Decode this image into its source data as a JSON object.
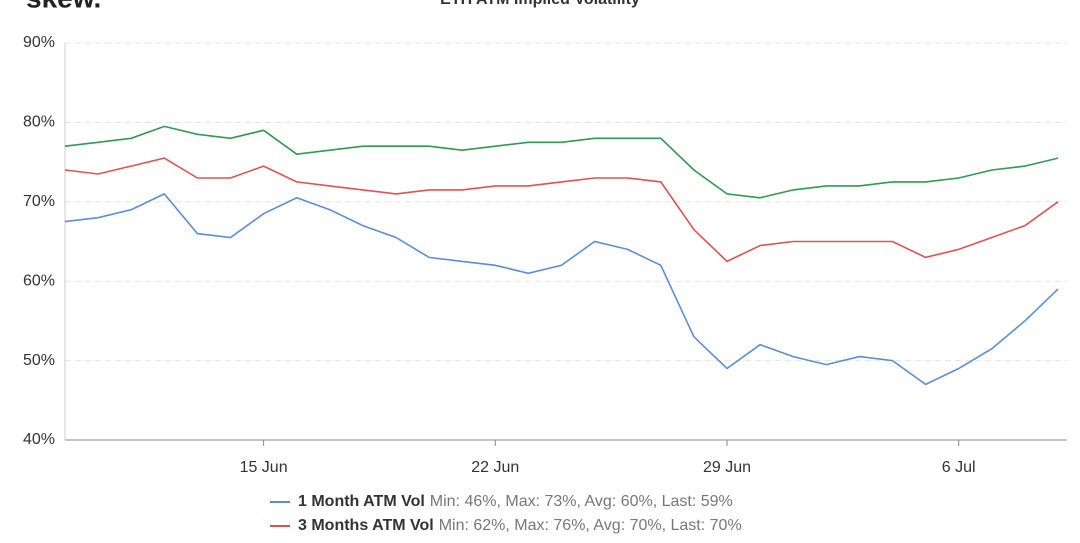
{
  "chart_data": {
    "type": "line",
    "logo": "skew.",
    "title": "ETH ATM Implied Volatility",
    "categories": [
      null,
      null,
      null,
      null,
      null,
      null,
      "15 Jun",
      null,
      null,
      null,
      null,
      null,
      null,
      "22 Jun",
      null,
      null,
      null,
      null,
      null,
      null,
      "29 Jun",
      null,
      null,
      null,
      null,
      null,
      null,
      "6 Jul",
      null,
      null,
      null
    ],
    "ylim": [
      40,
      90
    ],
    "yticks": [
      {
        "value": 40,
        "label": "40%"
      },
      {
        "value": 50,
        "label": "50%"
      },
      {
        "value": 60,
        "label": "60%"
      },
      {
        "value": 70,
        "label": "70%"
      },
      {
        "value": 80,
        "label": "80%"
      },
      {
        "value": 90,
        "label": "90%"
      }
    ],
    "grid": true,
    "series": [
      {
        "name": "1 Month ATM Vol",
        "stats": "Min: 46%, Max: 73%, Avg: 60%, Last: 59%",
        "color": "#5b8dd9",
        "values": [
          67.5,
          68,
          69,
          71,
          66,
          65.5,
          68.5,
          70.5,
          69,
          67,
          65.5,
          63,
          62.5,
          62,
          61,
          62,
          65,
          64,
          62,
          53,
          49,
          52,
          50.5,
          49.5,
          50.5,
          50,
          47,
          49,
          51.5,
          55,
          59
        ]
      },
      {
        "name": "3 Months ATM Vol",
        "stats": "Min: 62%, Max: 76%, Avg: 70%, Last: 70%",
        "color": "#e05252",
        "values": [
          74,
          73.5,
          74.5,
          75.5,
          73,
          73,
          74.5,
          72.5,
          72,
          71.5,
          71,
          71.5,
          71.5,
          72,
          72,
          72.5,
          73,
          73,
          72.5,
          66.5,
          62.5,
          64.5,
          65,
          65,
          65,
          65,
          63,
          64,
          65.5,
          67,
          70
        ]
      },
      {
        "color": "#2e9a52",
        "values": [
          77,
          77.5,
          78,
          79.5,
          78.5,
          78,
          79,
          76,
          76.5,
          77,
          77,
          77,
          76.5,
          77,
          77.5,
          77.5,
          78,
          78,
          78,
          74,
          71,
          70.5,
          71.5,
          72,
          72,
          72.5,
          72.5,
          73,
          74,
          74.5,
          75.5
        ]
      }
    ]
  }
}
